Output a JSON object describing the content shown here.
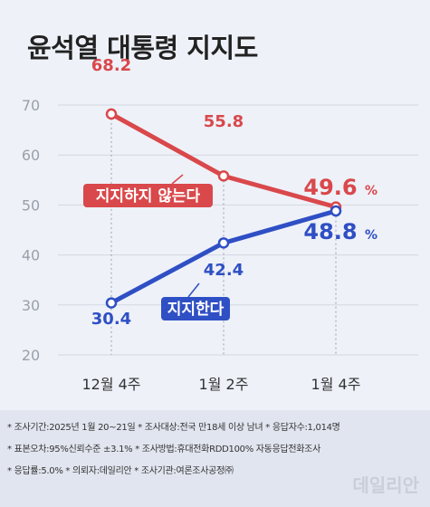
{
  "title": "윤석열 대통령 지지도",
  "chart_data": {
    "type": "line",
    "title": "윤석열 대통령 지지도",
    "categories": [
      "12월 4주",
      "1월 2주",
      "1월 4주"
    ],
    "series": [
      {
        "name": "지지하지 않는다",
        "values": [
          68.2,
          55.8,
          49.6
        ],
        "color": "#d9484b",
        "value_labels": [
          "68.2",
          "55.8",
          "49.6"
        ]
      },
      {
        "name": "지지한다",
        "values": [
          30.4,
          42.4,
          48.8
        ],
        "color": "#2f4fc4",
        "value_labels": [
          "30.4",
          "42.4",
          "48.8"
        ]
      }
    ],
    "last_value_unit": "%",
    "yticks": [
      20,
      30,
      40,
      50,
      60,
      70
    ],
    "ylim": [
      20,
      70
    ],
    "grid": true
  },
  "notes": {
    "line1": "* 조사기간:2025년 1월 20~21일  * 조사대상:전국 만18세 이상 남녀  * 응답자수:1,014명",
    "line2": "* 표본오차:95%신뢰수준 ±3.1%  * 조사방법:휴대전화RDD100% 자동응답전화조사",
    "line3": "* 응답률:5.0%  * 의뢰자:데일리안  * 조사기관:여론조사공정㈜"
  },
  "watermark": "데일리안"
}
